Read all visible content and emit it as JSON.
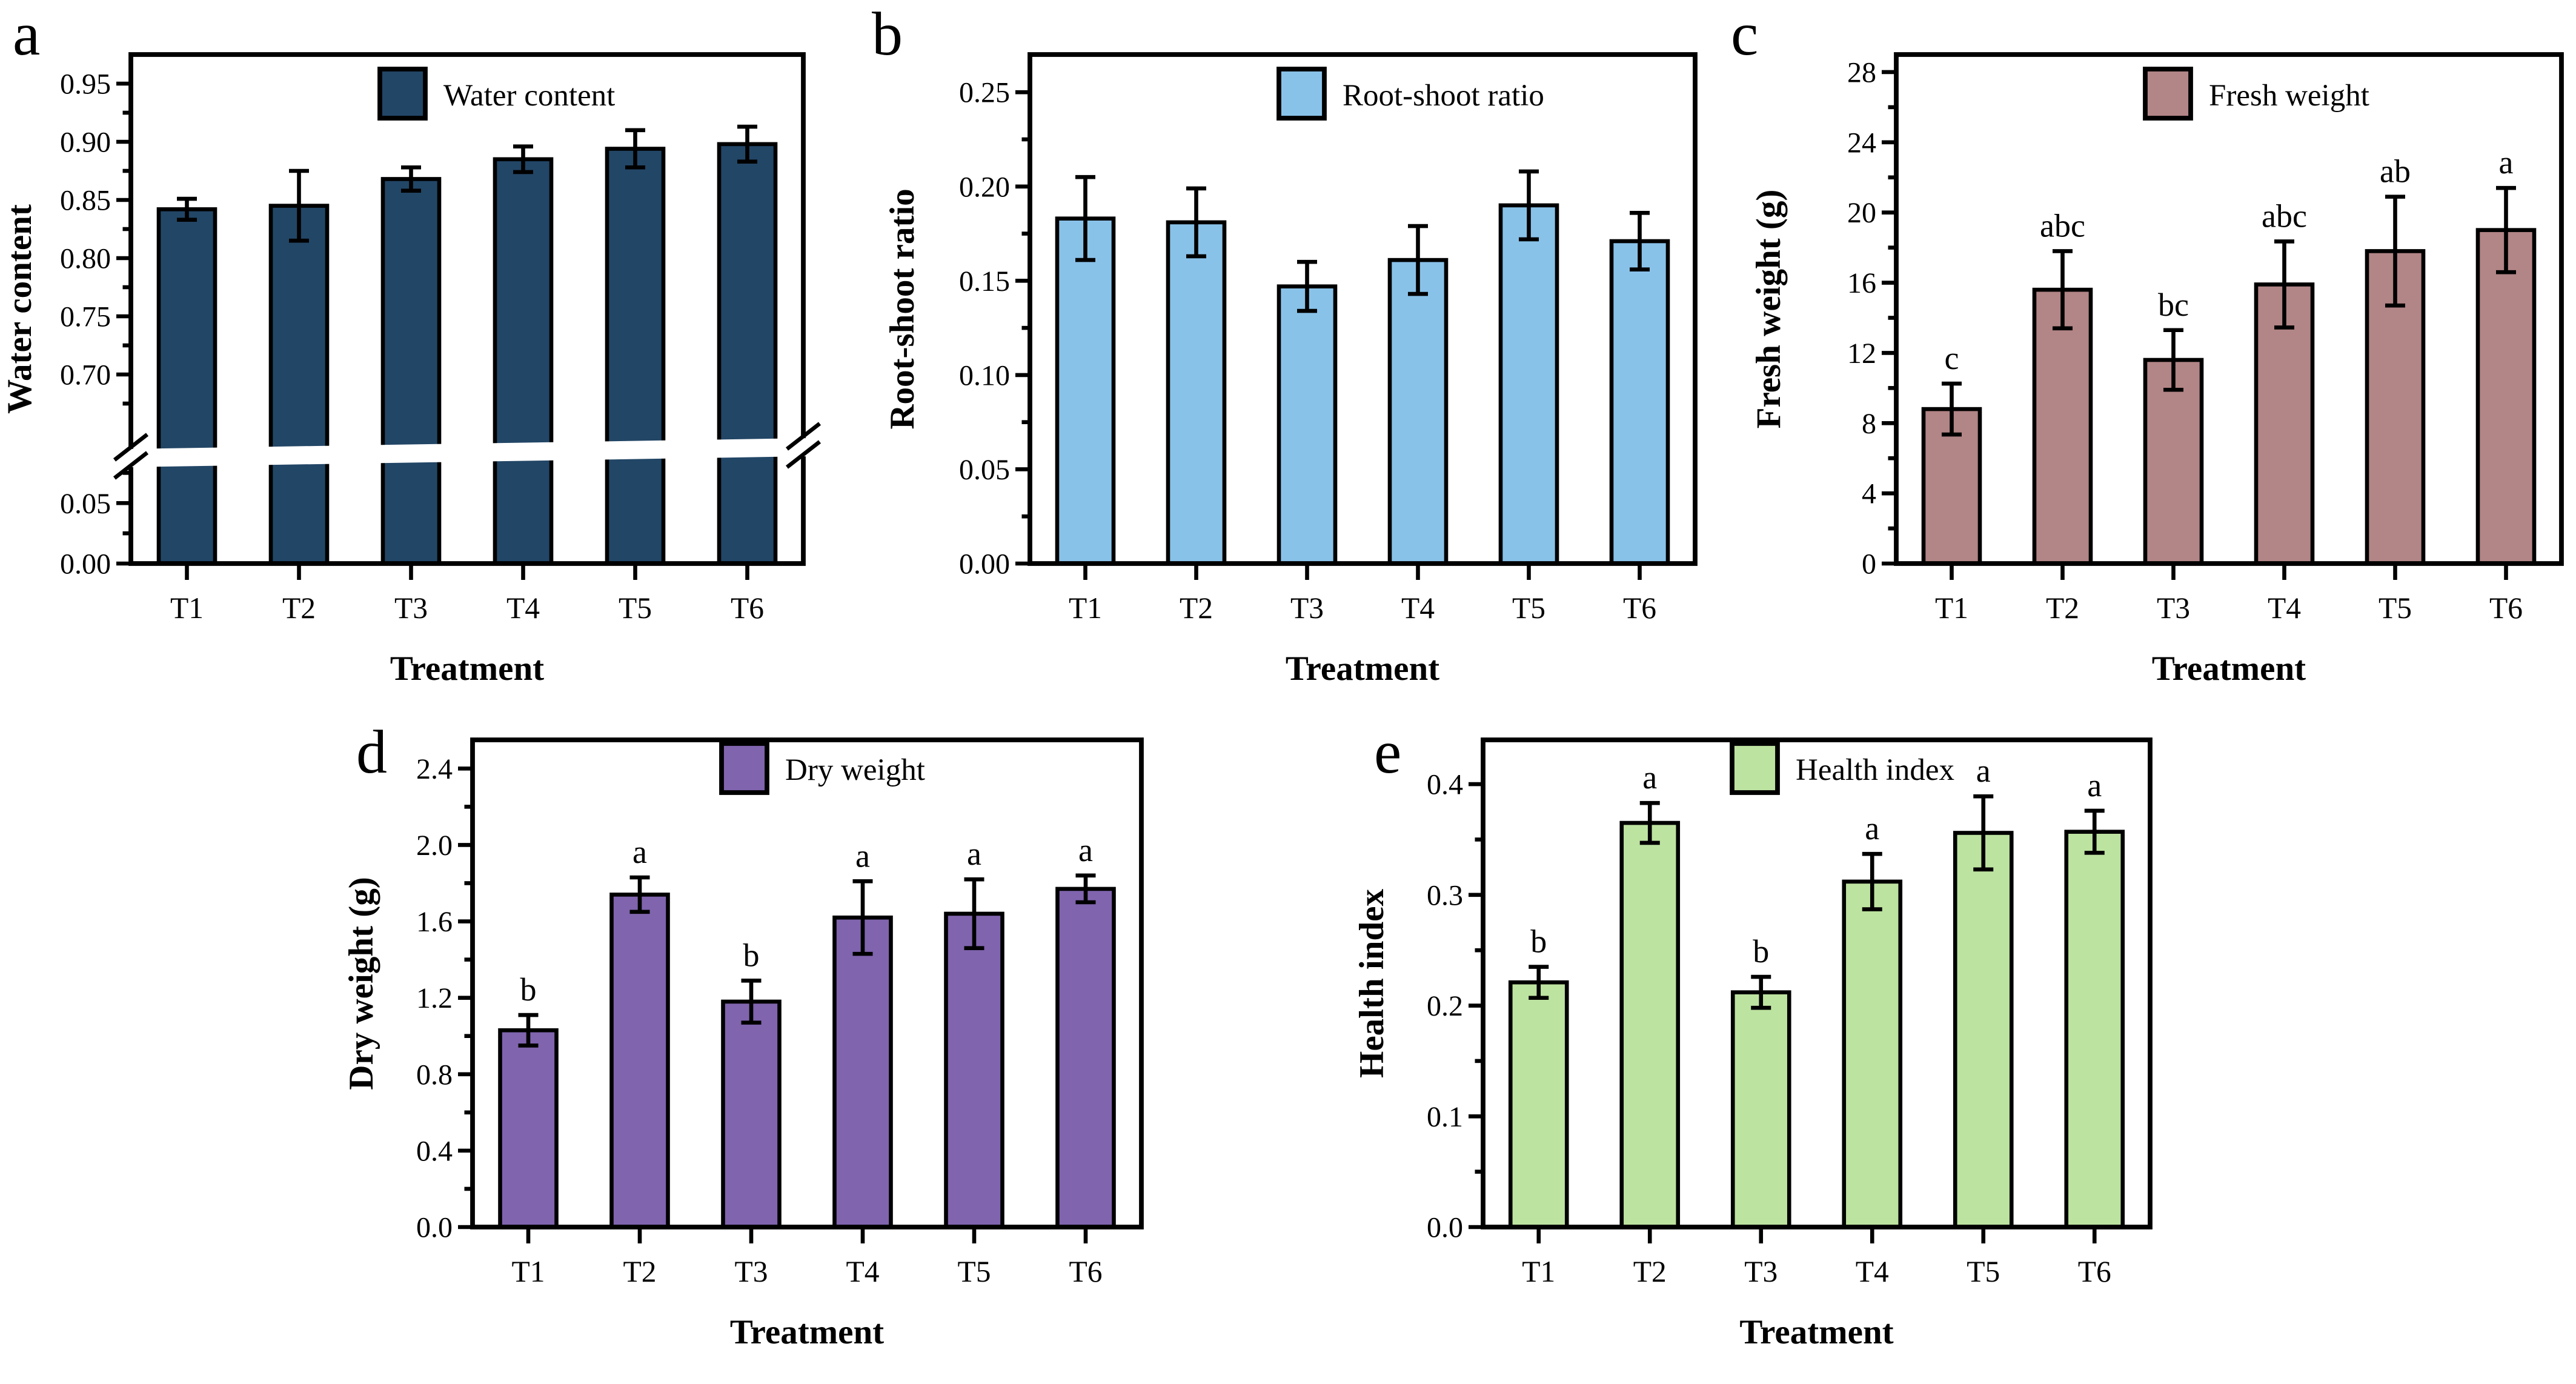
{
  "figure": {
    "xlabel": "Treatment",
    "categories": [
      "T1",
      "T2",
      "T3",
      "T4",
      "T5",
      "T6"
    ]
  },
  "chart_data": [
    {
      "id": "a",
      "type": "bar",
      "panel_label": "a",
      "legend": "Water content",
      "ylabel": "Water content",
      "xlabel": "Treatment",
      "categories": [
        "T1",
        "T2",
        "T3",
        "T4",
        "T5",
        "T6"
      ],
      "values": [
        0.842,
        0.845,
        0.868,
        0.885,
        0.894,
        0.898
      ],
      "errors": [
        0.009,
        0.03,
        0.01,
        0.011,
        0.016,
        0.015
      ],
      "letters": null,
      "bar_color": "#224666",
      "axis_break": true,
      "ydecimals": 2,
      "y_lower": {
        "min": 0,
        "max": 0.08,
        "ticks": [
          0,
          0.05
        ],
        "minor": [
          0.025,
          0.075
        ]
      },
      "y_upper": {
        "min": 0.65,
        "max": 0.975,
        "ticks": [
          0.7,
          0.75,
          0.8,
          0.85,
          0.9,
          0.95
        ],
        "minor": [
          0.675,
          0.725,
          0.775,
          0.825,
          0.875,
          0.925
        ]
      }
    },
    {
      "id": "b",
      "type": "bar",
      "panel_label": "b",
      "legend": "Root-shoot ratio",
      "ylabel": "Root-shoot ratio",
      "xlabel": "Treatment",
      "categories": [
        "T1",
        "T2",
        "T3",
        "T4",
        "T5",
        "T6"
      ],
      "values": [
        0.183,
        0.181,
        0.147,
        0.161,
        0.19,
        0.171
      ],
      "errors": [
        0.022,
        0.018,
        0.013,
        0.018,
        0.018,
        0.015
      ],
      "letters": null,
      "bar_color": "#89c2e9",
      "axis_break": false,
      "ydecimals": 2,
      "ymax": 0.27,
      "yticks": [
        0,
        0.05,
        0.1,
        0.15,
        0.2,
        0.25
      ],
      "yminor": [
        0.025,
        0.075,
        0.125,
        0.175,
        0.225
      ]
    },
    {
      "id": "c",
      "type": "bar",
      "panel_label": "c",
      "legend": "Fresh weight",
      "ylabel": "Fresh weight (g)",
      "xlabel": "Treatment",
      "categories": [
        "T1",
        "T2",
        "T3",
        "T4",
        "T5",
        "T6"
      ],
      "values": [
        8.8,
        15.6,
        11.6,
        15.9,
        17.8,
        19.0
      ],
      "errors": [
        1.45,
        2.2,
        1.7,
        2.45,
        3.1,
        2.4
      ],
      "letters": [
        "c",
        "abc",
        "bc",
        "abc",
        "ab",
        "a"
      ],
      "bar_color": "#b28586",
      "axis_break": false,
      "ydecimals": 0,
      "ymax": 29,
      "yticks": [
        0,
        4,
        8,
        12,
        16,
        20,
        24,
        28
      ],
      "yminor": [
        2,
        6,
        10,
        14,
        18,
        22,
        26
      ]
    },
    {
      "id": "d",
      "type": "bar",
      "panel_label": "d",
      "legend": "Dry weight",
      "ylabel": "Dry weight (g)",
      "xlabel": "Treatment",
      "categories": [
        "T1",
        "T2",
        "T3",
        "T4",
        "T5",
        "T6"
      ],
      "values": [
        1.03,
        1.74,
        1.18,
        1.62,
        1.64,
        1.77
      ],
      "errors": [
        0.08,
        0.09,
        0.11,
        0.19,
        0.18,
        0.07
      ],
      "letters": [
        "b",
        "a",
        "b",
        "a",
        "a",
        "a"
      ],
      "bar_color": "#8064ae",
      "axis_break": false,
      "ydecimals": 1,
      "ymax": 2.55,
      "yticks": [
        0,
        0.4,
        0.8,
        1.2,
        1.6,
        2.0,
        2.4
      ],
      "yminor": [
        0.2,
        0.6,
        1.0,
        1.4,
        1.8,
        2.2
      ]
    },
    {
      "id": "e",
      "type": "bar",
      "panel_label": "e",
      "legend": "Health index",
      "ylabel": "Health index",
      "xlabel": "Treatment",
      "categories": [
        "T1",
        "T2",
        "T3",
        "T4",
        "T5",
        "T6"
      ],
      "values": [
        0.221,
        0.365,
        0.212,
        0.312,
        0.356,
        0.357
      ],
      "errors": [
        0.014,
        0.018,
        0.014,
        0.025,
        0.033,
        0.019
      ],
      "letters": [
        "b",
        "a",
        "b",
        "a",
        "a",
        "a"
      ],
      "bar_color": "#bde3a0",
      "axis_break": false,
      "ydecimals": 1,
      "ymax": 0.44,
      "yticks": [
        0,
        0.1,
        0.2,
        0.3,
        0.4
      ],
      "yminor": [
        0.05,
        0.15,
        0.25,
        0.35
      ]
    }
  ]
}
